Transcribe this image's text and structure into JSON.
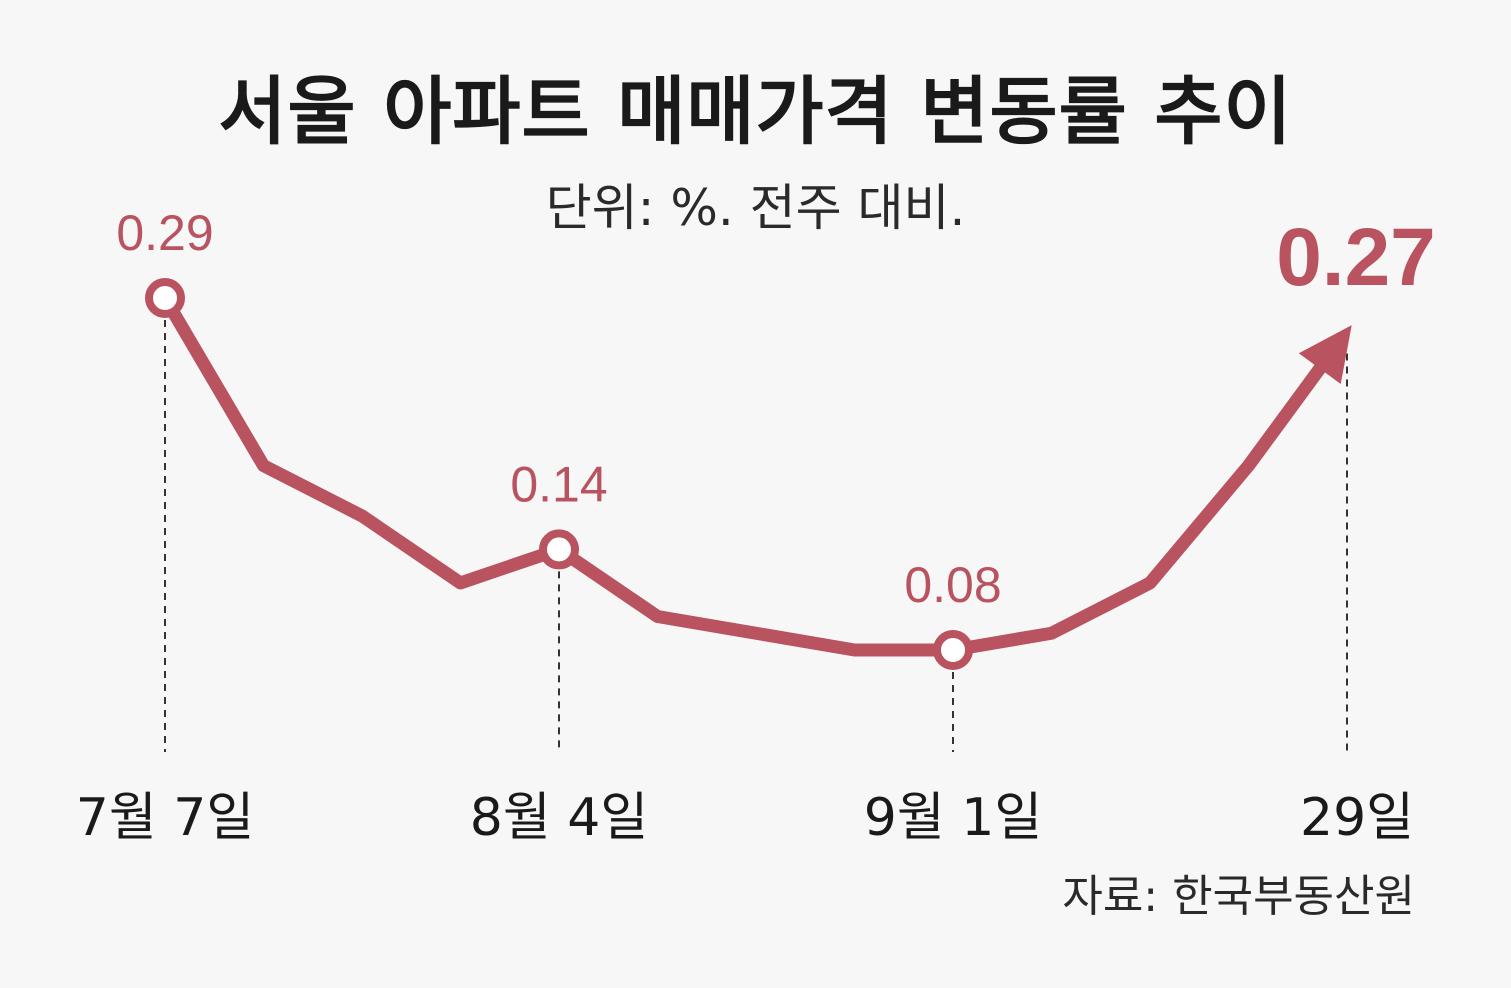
{
  "title": "서울 아파트 매매가격 변동률 추이",
  "subtitle": "단위: %. 전주 대비.",
  "source": "자료: 한국부동산원",
  "colors": {
    "line": "#b8535f",
    "text": "#1a1a1a",
    "background": "#f7f7f7"
  },
  "chart_data": {
    "type": "line",
    "title": "서울 아파트 매매가격 변동률 추이",
    "x": [
      "7월 7일",
      "",
      "",
      "",
      "8월 4일",
      "",
      "",
      "",
      "9월 1일",
      "",
      "",
      "",
      "29일"
    ],
    "values": [
      0.29,
      0.19,
      0.16,
      0.12,
      0.14,
      0.1,
      0.09,
      0.08,
      0.08,
      0.09,
      0.12,
      0.19,
      0.27
    ],
    "tick_labels": [
      {
        "index": 0,
        "label": "7월 7일"
      },
      {
        "index": 4,
        "label": "8월 4일"
      },
      {
        "index": 8,
        "label": "9월 1일"
      },
      {
        "index": 12,
        "label": "29일"
      }
    ],
    "value_labels": [
      {
        "index": 0,
        "label": "0.29"
      },
      {
        "index": 4,
        "label": "0.14"
      },
      {
        "index": 8,
        "label": "0.08"
      },
      {
        "index": 12,
        "label": "0.27"
      }
    ],
    "ylim": [
      0.0,
      0.32
    ],
    "grid": false,
    "arrow_on_last_point": true
  }
}
